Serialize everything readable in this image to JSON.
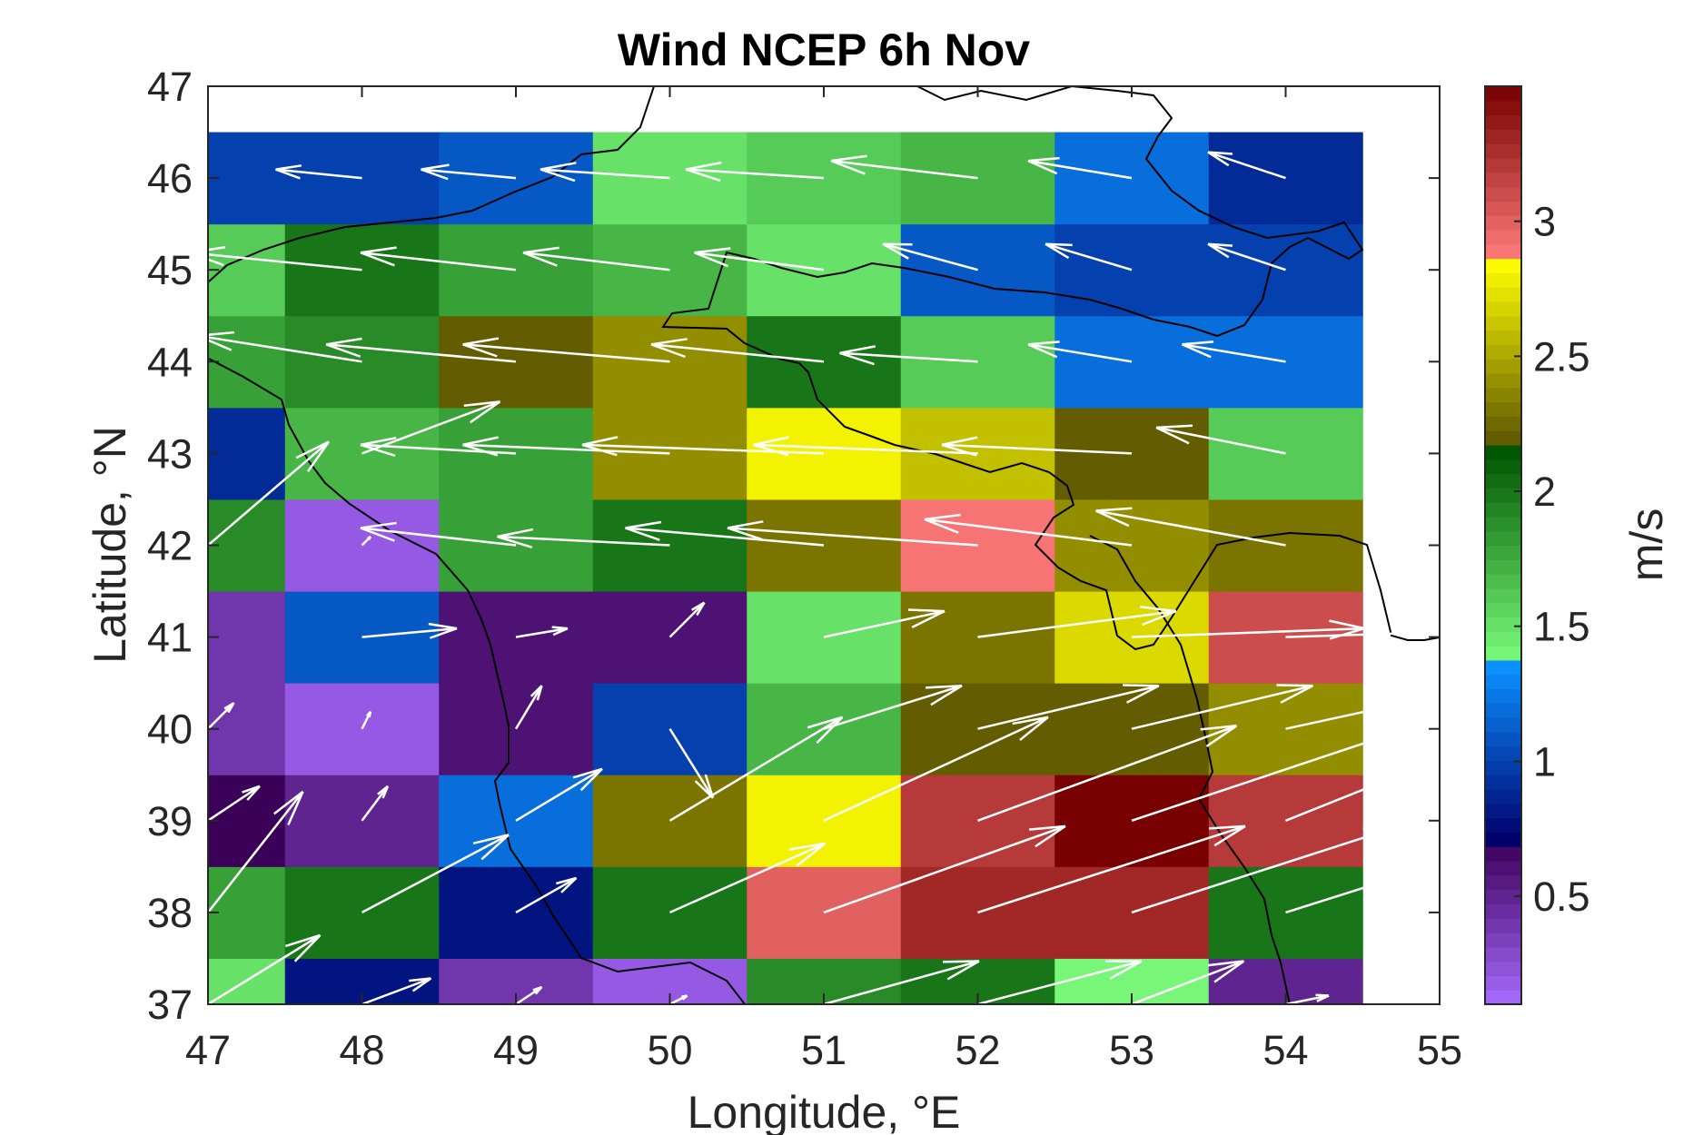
{
  "chart_data": {
    "type": "heatmap",
    "title": "Wind NCEP 6h Nov",
    "xlabel": "Longitude, °E",
    "ylabel": "Latitude, °N",
    "xlim": [
      47,
      55
    ],
    "ylim": [
      37,
      47
    ],
    "x_ticks": [
      "47",
      "48",
      "49",
      "50",
      "51",
      "52",
      "53",
      "54",
      "55"
    ],
    "y_ticks": [
      "37",
      "38",
      "39",
      "40",
      "41",
      "42",
      "43",
      "44",
      "45",
      "46",
      "47"
    ],
    "grid": false,
    "cell_centers_lon": [
      47,
      48,
      49,
      50,
      51,
      52,
      53,
      54
    ],
    "cell_centers_lat": [
      37,
      38,
      39,
      40,
      41,
      42,
      43,
      44,
      45,
      46
    ],
    "speed_m_s": [
      [
        1.5,
        0.8,
        0.4,
        0.2,
        1.9,
        2.0,
        1.4,
        0.5
      ],
      [
        1.8,
        2.0,
        0.8,
        2.0,
        3.0,
        3.3,
        3.3,
        2.0
      ],
      [
        0.7,
        0.5,
        1.2,
        2.3,
        2.8,
        3.2,
        3.5,
        3.2
      ],
      [
        0.4,
        0.2,
        0.6,
        1.0,
        1.7,
        2.2,
        2.2,
        2.4
      ],
      [
        0.4,
        1.1,
        0.6,
        0.6,
        1.5,
        2.3,
        2.7,
        3.1
      ],
      [
        1.9,
        0.2,
        1.8,
        2.0,
        2.3,
        2.9,
        2.4,
        2.3
      ],
      [
        0.9,
        1.7,
        1.8,
        2.4,
        2.8,
        2.6,
        2.2,
        1.6
      ],
      [
        1.8,
        1.9,
        2.2,
        2.4,
        2.0,
        1.6,
        1.2,
        1.2
      ],
      [
        1.6,
        2.0,
        1.8,
        1.7,
        1.5,
        1.1,
        1.0,
        1.0
      ],
      [
        1.0,
        1.0,
        1.1,
        1.5,
        1.6,
        1.7,
        1.2,
        0.9
      ]
    ],
    "wind_u": [
      [
        1.3,
        0.8,
        0.3,
        0.2,
        1.8,
        1.9,
        1.3,
        0.5
      ],
      [
        1.1,
        1.7,
        0.7,
        1.8,
        2.8,
        3.1,
        3.1,
        1.9
      ],
      [
        0.6,
        0.3,
        1.0,
        2.0,
        2.6,
        3.0,
        3.3,
        3.0
      ],
      [
        0.3,
        0.1,
        0.3,
        0.5,
        1.6,
        2.1,
        2.1,
        2.3
      ],
      [
        -0.3,
        1.1,
        0.6,
        0.4,
        1.4,
        2.3,
        2.7,
        3.1
      ],
      [
        1.4,
        0.1,
        -1.8,
        -2.0,
        -2.3,
        -2.9,
        -2.4,
        -2.2
      ],
      [
        -0.9,
        1.6,
        -1.8,
        -2.4,
        -2.8,
        -2.6,
        -2.2,
        -1.5
      ],
      [
        -1.8,
        -1.9,
        -2.2,
        -2.4,
        -2.0,
        -1.6,
        -1.2,
        -1.2
      ],
      [
        -1.6,
        -2.0,
        -1.8,
        -1.7,
        -1.5,
        -1.1,
        -1.0,
        -0.9
      ],
      [
        -1.0,
        -1.0,
        -1.1,
        -1.5,
        -1.6,
        -1.7,
        -1.2,
        -0.9
      ]
    ],
    "wind_v": [
      [
        0.8,
        0.3,
        0.2,
        0.1,
        0.5,
        0.5,
        0.5,
        0.1
      ],
      [
        1.4,
        0.9,
        0.4,
        0.8,
        1.0,
        1.0,
        1.0,
        0.6
      ],
      [
        0.4,
        0.4,
        0.6,
        1.2,
        1.2,
        1.1,
        1.1,
        1.2
      ],
      [
        0.3,
        0.2,
        0.5,
        -0.8,
        0.5,
        0.5,
        0.5,
        0.5
      ],
      [
        0.3,
        0.1,
        0.1,
        0.4,
        0.3,
        0.3,
        0.1,
        0.1
      ],
      [
        1.2,
        0.1,
        0.2,
        0.1,
        0.2,
        0.2,
        0.3,
        0.4
      ],
      [
        0.1,
        0.6,
        0.1,
        0.1,
        0.1,
        0.1,
        0.1,
        0.3
      ],
      [
        0.2,
        0.3,
        0.2,
        0.2,
        0.2,
        0.1,
        0.2,
        0.2
      ],
      [
        0.2,
        0.2,
        0.2,
        0.2,
        0.2,
        0.3,
        0.3,
        0.3
      ],
      [
        0.1,
        0.1,
        0.1,
        0.1,
        0.1,
        0.2,
        0.2,
        0.3
      ]
    ],
    "colorbar": {
      "label": "m/s",
      "ticks": [
        "0.5",
        "1",
        "1.5",
        "2",
        "2.5",
        "3"
      ],
      "range": [
        0.1,
        3.5
      ],
      "stops": [
        {
          "value": 0.1,
          "color": "#a76bff"
        },
        {
          "value": 0.7,
          "color": "#3b0058"
        },
        {
          "value": 0.71,
          "color": "#00006b"
        },
        {
          "value": 1.35,
          "color": "#0a90ff"
        },
        {
          "value": 1.36,
          "color": "#7dff7d"
        },
        {
          "value": 2.15,
          "color": "#005500"
        },
        {
          "value": 2.16,
          "color": "#5a5200"
        },
        {
          "value": 2.85,
          "color": "#ffff00"
        },
        {
          "value": 2.86,
          "color": "#ff7c7c"
        },
        {
          "value": 3.5,
          "color": "#780000"
        }
      ]
    },
    "colors": {
      "arrow": "#ffffff",
      "coastline": "#000000",
      "axes": "#262626"
    }
  }
}
